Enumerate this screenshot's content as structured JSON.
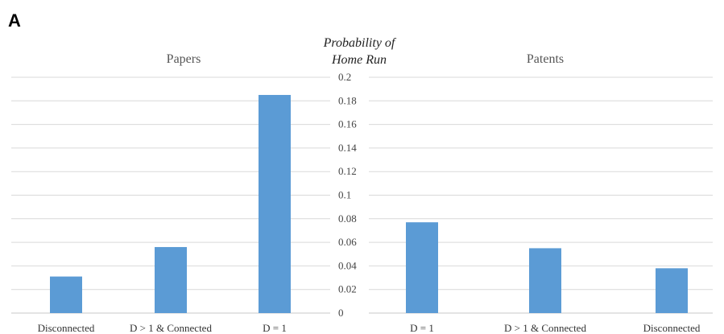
{
  "figure": {
    "panel_letter": "A",
    "axis_title_line1": "Probability of",
    "axis_title_line2": "Home Run"
  },
  "colors": {
    "bar": "#5b9bd5",
    "grid": "#d9d9d9"
  },
  "chart_data": [
    {
      "type": "bar",
      "title": "Papers",
      "categories": [
        "Disconnected",
        "D > 1 & Connected",
        "D = 1"
      ],
      "values": [
        0.031,
        0.056,
        0.185
      ],
      "ylim": [
        0,
        0.2
      ],
      "yticks": [
        "0",
        "0.02",
        "0.04",
        "0.06",
        "0.08",
        "0.1",
        "0.12",
        "0.14",
        "0.16",
        "0.18",
        "0.2"
      ],
      "ylabel": "Probability of Home Run",
      "grid": true
    },
    {
      "type": "bar",
      "title": "Patents",
      "categories": [
        "D = 1",
        "D > 1 & Connected",
        "Disconnected"
      ],
      "values": [
        0.077,
        0.055,
        0.038
      ],
      "ylim": [
        0,
        0.2
      ],
      "ylabel": "Probability of Home Run",
      "grid": true
    }
  ]
}
